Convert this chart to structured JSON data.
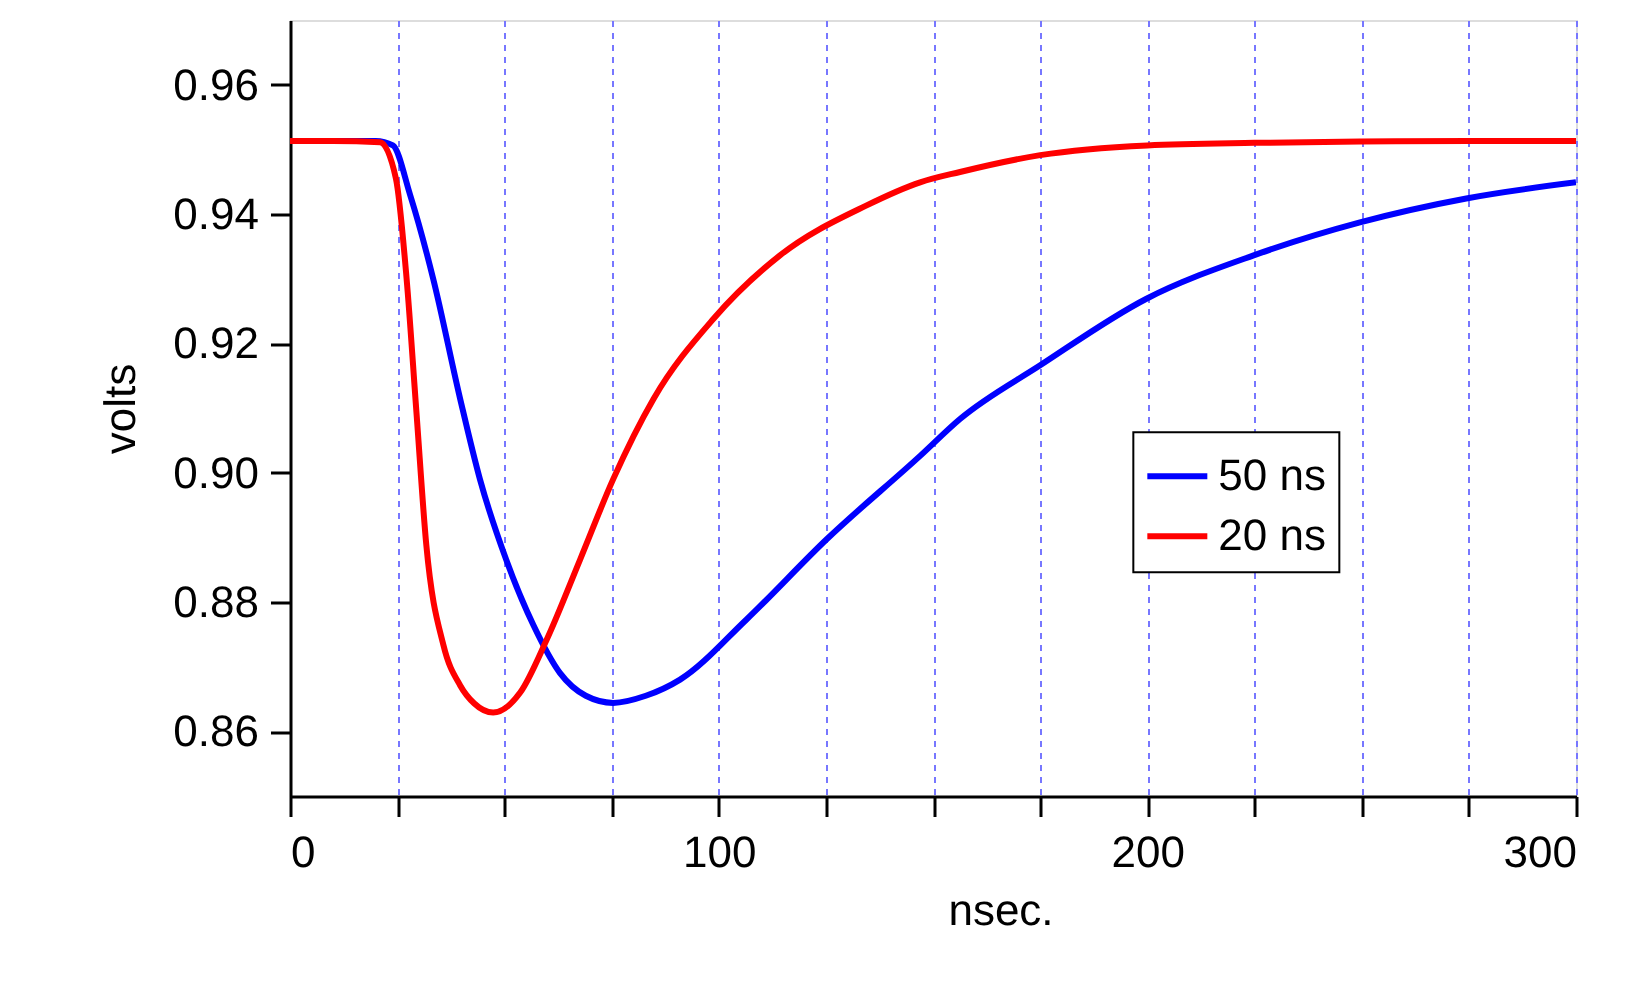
{
  "chart_data": {
    "type": "line",
    "xlabel": "nsec.",
    "ylabel": "volts",
    "xlim": [
      0,
      300
    ],
    "ylim": [
      0.85,
      0.97
    ],
    "xticks": [
      0,
      {
        "value": 25,
        "label": null
      },
      {
        "value": 50,
        "label": null
      },
      {
        "value": 75,
        "label": null
      },
      100,
      {
        "value": 125,
        "label": null
      },
      {
        "value": 150,
        "label": null
      },
      {
        "value": 175,
        "label": null
      },
      200,
      {
        "value": 225,
        "label": null
      },
      {
        "value": 250,
        "label": null
      },
      {
        "value": 275,
        "label": null
      },
      300
    ],
    "yticks": [
      0.86,
      0.88,
      {
        "value": 0.9,
        "label": "0.90"
      },
      0.92,
      0.94,
      0.96
    ],
    "grid": "x",
    "legend": "right",
    "line_style": "solid",
    "marker": "none",
    "series": [
      {
        "name": "50 ns",
        "color": "#0000ff",
        "x": [
          0,
          10,
          20,
          24,
          28,
          33.4,
          39.7,
          44.3,
          50.4,
          56.8,
          63,
          69,
          75.4,
          83,
          91,
          106.5,
          125.2,
          147,
          156.3,
          175,
          199.8,
          224.8,
          249.6,
          274.4,
          300
        ],
        "values": [
          0.9513,
          0.9513,
          0.9513,
          0.9506,
          0.943,
          0.93,
          0.9114,
          0.899,
          0.8866,
          0.8764,
          0.869,
          0.8655,
          0.8644,
          0.8655,
          0.868,
          0.8773,
          0.8897,
          0.9026,
          0.9083,
          0.9166,
          0.9269,
          0.9336,
          0.9387,
          0.9424,
          0.9449
        ]
      },
      {
        "name": "20 ns",
        "color": "#ff0000",
        "x": [
          0,
          10,
          21,
          24.7,
          27.2,
          29.5,
          31.8,
          35.8,
          39.7,
          43,
          47.4,
          53.7,
          59.9,
          67.7,
          75.4,
          84.8,
          98.8,
          114.3,
          134.4,
          147,
          156.3,
          175,
          200,
          225,
          250,
          275,
          300
        ],
        "values": [
          0.9513,
          0.9513,
          0.9511,
          0.9455,
          0.93,
          0.9093,
          0.8888,
          0.8733,
          0.8671,
          0.8643,
          0.8629,
          0.866,
          0.8742,
          0.8866,
          0.899,
          0.9114,
          0.9238,
          0.9336,
          0.9413,
          0.9449,
          0.9465,
          0.9491,
          0.9506,
          0.951,
          0.9512,
          0.9513,
          0.9513
        ]
      }
    ]
  }
}
